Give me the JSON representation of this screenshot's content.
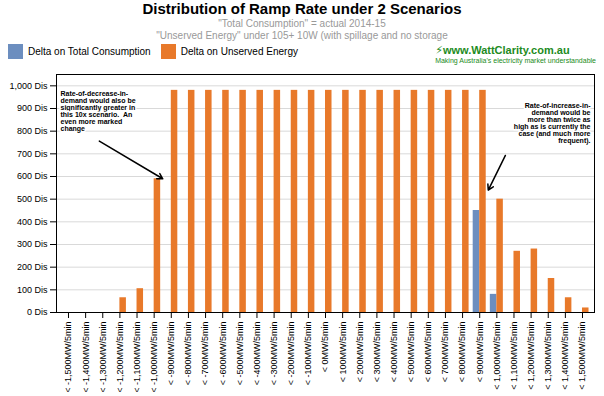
{
  "chart_data": {
    "type": "bar",
    "title": "Distribution of Ramp Rate under 2 Scenarios",
    "subtitle": [
      "\"Total Consumption\" = actual 2014-15",
      "\"Unserved Energy\" under 105+ 10W (with spillage and no storage"
    ],
    "categories": [
      "< -1,500MW/5min",
      "< -1,400MW/5min",
      "< -1,300MW/5min",
      "< -1,200MW/5min",
      "< -1,100MW/5min",
      "< -1,000MW/5min",
      "< -900MW/5min",
      "< -800MW/5min",
      "< -700MW/5min",
      "< -600MW/5min",
      "< -500MW/5min",
      "< -400MW/5min",
      "< -300MW/5min",
      "< -200MW/5min",
      "< -100MW/5min",
      "< 0MW/5min",
      "< 100MW/5min",
      "< 200MW/5min",
      "< 300MW/5min",
      "< 400MW/5min",
      "< 500MW/5min",
      "< 600MW/5min",
      "< 700MW/5min",
      "< 800MW/5min",
      "< 900MW/5min",
      "< 1,000MW/5min",
      "< 1,100MW/5min",
      "< 1,200MW/5min",
      "< 1,300MW/5min",
      "< 1,400MW/5min",
      "< 1,500MW/5min"
    ],
    "series": [
      {
        "name": "Delta on Total Consumption",
        "color": "#6C8EBF",
        "values": [
          0,
          0,
          0,
          0,
          0,
          0,
          0,
          0,
          0,
          0,
          0,
          0,
          0,
          0,
          0,
          0,
          0,
          0,
          0,
          0,
          0,
          0,
          0,
          0,
          450,
          80,
          0,
          0,
          0,
          0,
          0
        ]
      },
      {
        "name": "Delta on Unserved Energy",
        "color": "#E8792A",
        "values": [
          0,
          0,
          0,
          65,
          105,
          590,
          980,
          980,
          980,
          980,
          980,
          980,
          980,
          980,
          980,
          980,
          980,
          980,
          980,
          980,
          980,
          980,
          980,
          980,
          980,
          500,
          270,
          280,
          150,
          65,
          20
        ]
      }
    ],
    "ylim": [
      0,
      1050
    ],
    "yticks": [
      {
        "value": 0,
        "label": "0 Dis"
      },
      {
        "value": 100,
        "label": "100 Dis"
      },
      {
        "value": 200,
        "label": "200 Dis"
      },
      {
        "value": 300,
        "label": "300 Dis"
      },
      {
        "value": 400,
        "label": "400 Dis"
      },
      {
        "value": 500,
        "label": "500 Dis"
      },
      {
        "value": 600,
        "label": "600 Dis"
      },
      {
        "value": 700,
        "label": "700 Dis"
      },
      {
        "value": 800,
        "label": "800 Dis"
      },
      {
        "value": 900,
        "label": "900 Dis"
      },
      {
        "value": 1000,
        "label": "1,000 Dis"
      }
    ],
    "grid": true,
    "legend": "top-left",
    "annotations": [
      {
        "text": "Rate-of-decrease-in-\ndemand would also be\nsignificantly greater in\nthis 10x scenario.  An\neven more marked\nchange",
        "x": "< -1,000MW/5min",
        "y": 590
      },
      {
        "text": "Rate-of-increase-in-\ndemand would be\nmore than twice as\nhigh as is currently the\ncase (and much more\nfrequent).",
        "x": "< 900MW/5min",
        "y": 540
      },
      {
        "text": "⚡"
      },
      {
        "text": "www.WattClarity"
      },
      {
        "text": ".com.au"
      },
      {
        "text": "Making Australia's electricity market understandable"
      }
    ]
  }
}
